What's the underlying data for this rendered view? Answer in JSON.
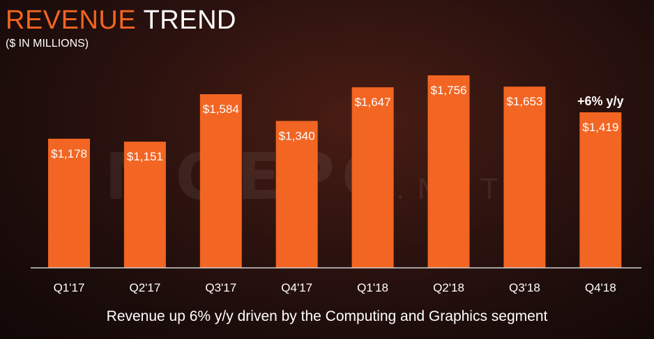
{
  "header": {
    "title_part1": "REVENUE",
    "title_part2": "TREND",
    "subtitle": "($ IN MILLIONS)"
  },
  "watermark": {
    "text": "MOEPC",
    "suffix": ".NET"
  },
  "chart_data": {
    "type": "bar",
    "title": "REVENUE TREND",
    "subtitle": "($ IN MILLIONS)",
    "categories": [
      "Q1'17",
      "Q2'17",
      "Q3'17",
      "Q4'17",
      "Q1'18",
      "Q2'18",
      "Q3'18",
      "Q4'18"
    ],
    "values": [
      1178,
      1151,
      1584,
      1340,
      1647,
      1756,
      1653,
      1419
    ],
    "data_labels": [
      "$1,178",
      "$1,151",
      "$1,584",
      "$1,340",
      "$1,647",
      "$1,756",
      "$1,653",
      "$1,419"
    ],
    "annotations": [
      {
        "category": "Q4'18",
        "text": "+6% y/y"
      }
    ],
    "bar_color": "#f26522",
    "grid": false,
    "legend": "none"
  },
  "footer": {
    "caption": "Revenue up 6% y/y driven by the Computing and Graphics segment"
  }
}
